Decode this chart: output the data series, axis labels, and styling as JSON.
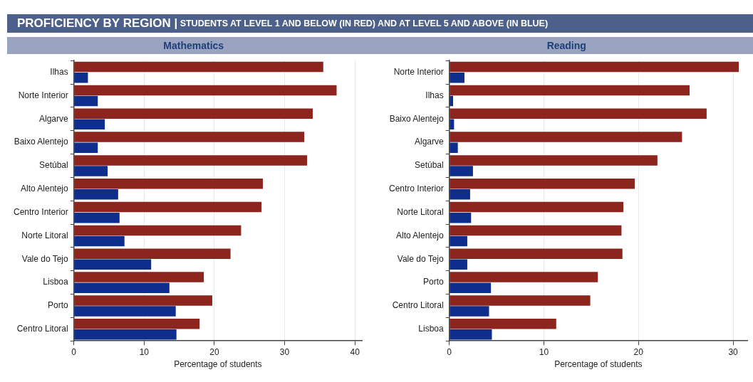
{
  "chart_data": [
    {
      "type": "bar",
      "orientation": "horizontal",
      "title": "PROFICIENCY BY REGION | STUDENTS AT LEVEL 1 AND BELOW (IN RED) AND AT LEVEL 5 AND ABOVE (IN BLUE)",
      "subtitle": "Mathematics",
      "xlabel": "Percentage of students",
      "categories": [
        "Ilhas",
        "Norte Interior",
        "Algarve",
        "Baixo Alentejo",
        "Setúbal",
        "Alto Alentejo",
        "Centro Interior",
        "Norte Litoral",
        "Vale do Tejo",
        "Lisboa",
        "Porto",
        "Centro Litoral"
      ],
      "series": [
        {
          "color": "#8b251e",
          "values": [
            35.5,
            37.4,
            34.0,
            32.8,
            33.2,
            26.9,
            26.7,
            23.8,
            22.3,
            18.5,
            19.7,
            17.9
          ]
        },
        {
          "color": "#0f2d8a",
          "values": [
            2.0,
            3.4,
            4.4,
            3.4,
            4.8,
            6.3,
            6.5,
            7.2,
            11.0,
            13.6,
            14.5,
            14.6
          ]
        }
      ],
      "xlim": [
        0,
        41
      ],
      "xticks": [
        0,
        10,
        20,
        30,
        40
      ],
      "grid": "x",
      "legend": false
    },
    {
      "type": "bar",
      "orientation": "horizontal",
      "subtitle": "Reading",
      "xlabel": "Percentage of students",
      "categories": [
        "Norte Interior",
        "Ilhas",
        "Baixo Alentejo",
        "Algarve",
        "Setúbal",
        "Centro Interior",
        "Norte Litoral",
        "Alto Alentejo",
        "Vale do Tejo",
        "Porto",
        "Centro Litoral",
        "Lisboa"
      ],
      "series": [
        {
          "color": "#8b251e",
          "values": [
            30.6,
            25.4,
            27.2,
            24.6,
            22.0,
            19.6,
            18.4,
            18.2,
            18.3,
            15.7,
            14.9,
            11.3
          ]
        },
        {
          "color": "#0f2d8a",
          "values": [
            1.6,
            0.4,
            0.5,
            0.9,
            2.5,
            2.2,
            2.3,
            1.9,
            1.9,
            4.4,
            4.2,
            4.5
          ]
        }
      ],
      "xlim": [
        0,
        31.5
      ],
      "xticks": [
        0,
        10,
        20,
        30
      ],
      "grid": "x",
      "legend": false
    }
  ]
}
